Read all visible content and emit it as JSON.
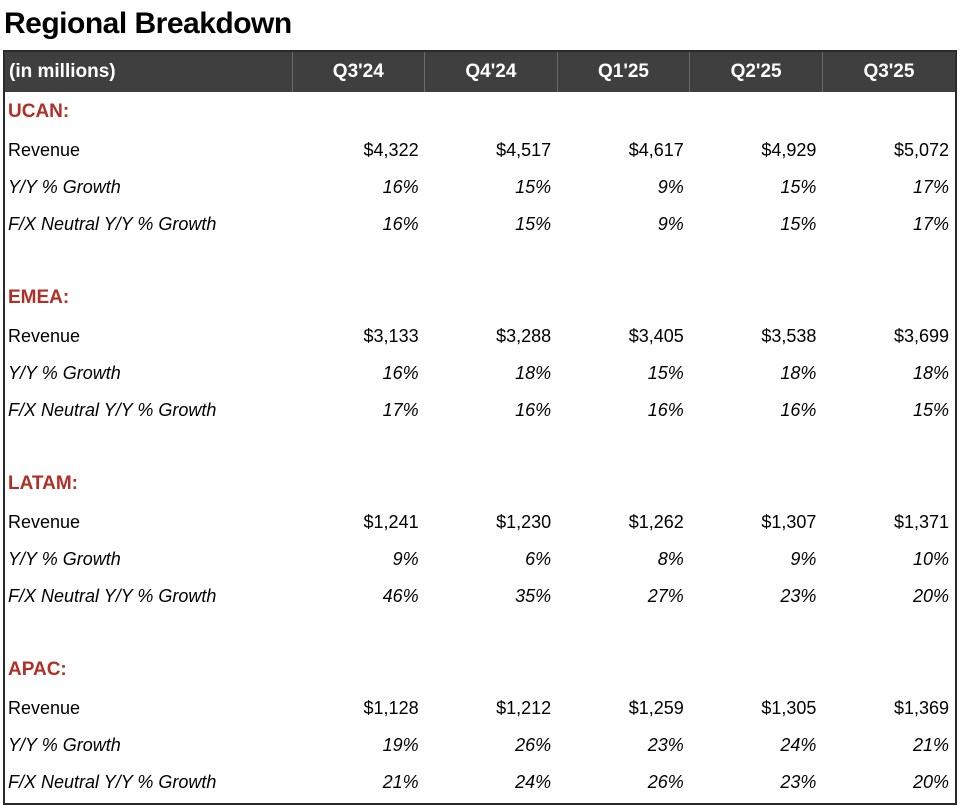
{
  "title": "Regional Breakdown",
  "table": {
    "unit_label": "(in millions)",
    "columns": [
      "Q3'24",
      "Q4'24",
      "Q1'25",
      "Q2'25",
      "Q3'25"
    ],
    "sections": [
      {
        "name": "UCAN:",
        "rows": [
          {
            "label": "Revenue",
            "values": [
              "$4,322",
              "$4,517",
              "$4,617",
              "$4,929",
              "$5,072"
            ]
          },
          {
            "label": "Y/Y % Growth",
            "values": [
              "16%",
              "15%",
              "9%",
              "15%",
              "17%"
            ]
          },
          {
            "label": "F/X Neutral Y/Y % Growth",
            "values": [
              "16%",
              "15%",
              "9%",
              "15%",
              "17%"
            ]
          }
        ]
      },
      {
        "name": "EMEA:",
        "rows": [
          {
            "label": "Revenue",
            "values": [
              "$3,133",
              "$3,288",
              "$3,405",
              "$3,538",
              "$3,699"
            ]
          },
          {
            "label": "Y/Y % Growth",
            "values": [
              "16%",
              "18%",
              "15%",
              "18%",
              "18%"
            ]
          },
          {
            "label": "F/X Neutral Y/Y % Growth",
            "values": [
              "17%",
              "16%",
              "16%",
              "16%",
              "15%"
            ]
          }
        ]
      },
      {
        "name": "LATAM:",
        "rows": [
          {
            "label": "Revenue",
            "values": [
              "$1,241",
              "$1,230",
              "$1,262",
              "$1,307",
              "$1,371"
            ]
          },
          {
            "label": "Y/Y % Growth",
            "values": [
              "9%",
              "6%",
              "8%",
              "9%",
              "10%"
            ]
          },
          {
            "label": "F/X Neutral Y/Y % Growth",
            "values": [
              "46%",
              "35%",
              "27%",
              "23%",
              "20%"
            ]
          }
        ]
      },
      {
        "name": "APAC:",
        "rows": [
          {
            "label": "Revenue",
            "values": [
              "$1,128",
              "$1,212",
              "$1,259",
              "$1,305",
              "$1,369"
            ]
          },
          {
            "label": "Y/Y % Growth",
            "values": [
              "19%",
              "26%",
              "23%",
              "24%",
              "21%"
            ]
          },
          {
            "label": "F/X Neutral Y/Y % Growth",
            "values": [
              "21%",
              "24%",
              "26%",
              "23%",
              "20%"
            ]
          }
        ]
      }
    ]
  },
  "colors": {
    "header_bg": "#3f3f3f",
    "header_text": "#ffffff",
    "section_label": "#b03027"
  }
}
